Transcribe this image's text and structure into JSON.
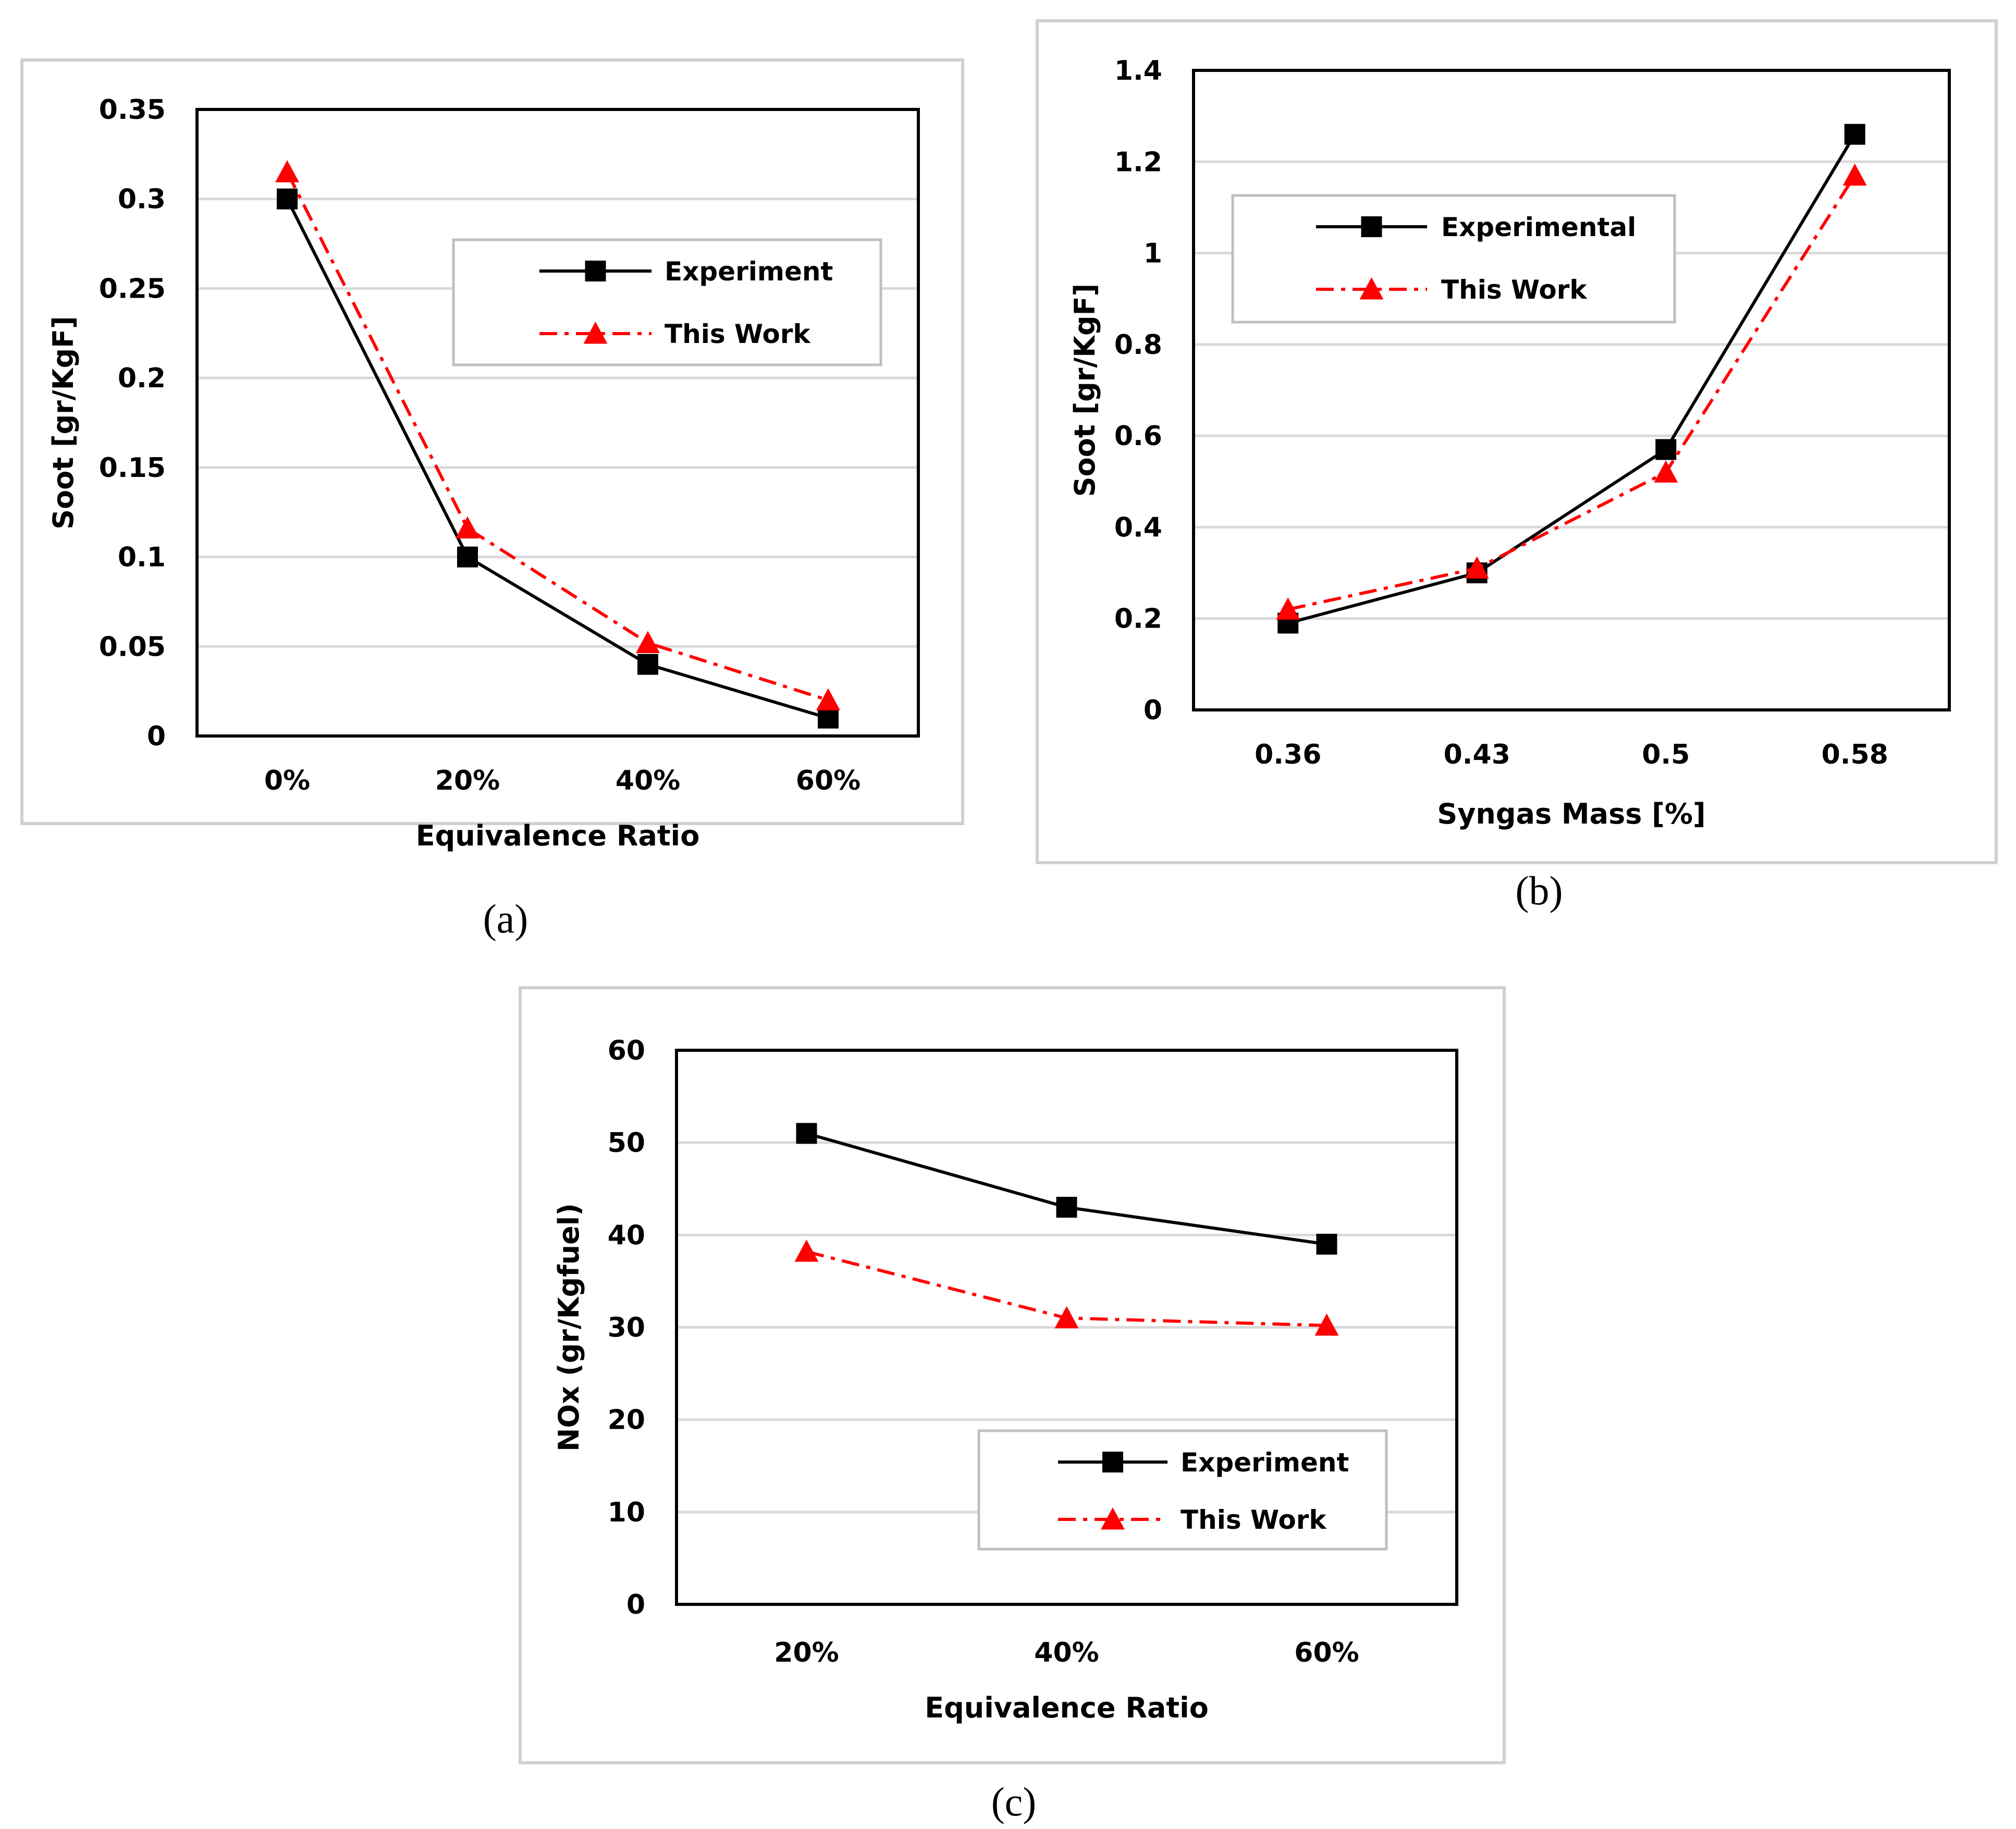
{
  "chart_data": [
    {
      "id": "a",
      "type": "line",
      "caption": "(a)",
      "categories": [
        "0%",
        "20%",
        "40%",
        "60%"
      ],
      "series": [
        {
          "name": "Experiment",
          "values": [
            0.3,
            0.1,
            0.04,
            0.01
          ],
          "color": "#000000",
          "marker": "square",
          "dash": "solid"
        },
        {
          "name": "This Work",
          "values": [
            0.315,
            0.116,
            0.052,
            0.02
          ],
          "color": "#ff0000",
          "marker": "triangle",
          "dash": "dashdot"
        }
      ],
      "xlabel": "Equivalence Ratio",
      "ylabel": "Soot [gr/KgF]",
      "ylim": [
        0,
        0.35
      ],
      "yticks": [
        "0",
        "0.05",
        "0.1",
        "0.15",
        "0.2",
        "0.25",
        "0.3",
        "0.35"
      ],
      "grid": true,
      "legend": "upper-right"
    },
    {
      "id": "b",
      "type": "line",
      "caption": "(b)",
      "categories": [
        "0.36",
        "0.43",
        "0.5",
        "0.58"
      ],
      "series": [
        {
          "name": "Experimental",
          "values": [
            0.19,
            0.3,
            0.57,
            1.26
          ],
          "color": "#000000",
          "marker": "square",
          "dash": "solid"
        },
        {
          "name": "This Work",
          "values": [
            0.22,
            0.31,
            0.52,
            1.17
          ],
          "color": "#ff0000",
          "marker": "triangle",
          "dash": "dashdot"
        }
      ],
      "xlabel": "Syngas Mass [%]",
      "ylabel": "Soot [gr/KgF]",
      "ylim": [
        0,
        1.4
      ],
      "yticks": [
        "0",
        "0.2",
        "0.4",
        "0.6",
        "0.8",
        "1",
        "1.2",
        "1.4"
      ],
      "grid": true,
      "legend": "upper-left"
    },
    {
      "id": "c",
      "type": "line",
      "caption": "(c)",
      "categories": [
        "20%",
        "40%",
        "60%"
      ],
      "series": [
        {
          "name": "Experiment",
          "values": [
            51,
            43,
            39
          ],
          "color": "#000000",
          "marker": "square",
          "dash": "solid"
        },
        {
          "name": "This Work",
          "values": [
            38.2,
            31,
            30.2
          ],
          "color": "#ff0000",
          "marker": "triangle",
          "dash": "dashdot"
        }
      ],
      "xlabel": "Equivalence Ratio",
      "ylabel": "NOx (gr/Kgfuel)",
      "ylim": [
        0,
        60
      ],
      "yticks": [
        "0",
        "10",
        "20",
        "30",
        "40",
        "50",
        "60"
      ],
      "grid": true,
      "legend": "lower-right"
    }
  ]
}
